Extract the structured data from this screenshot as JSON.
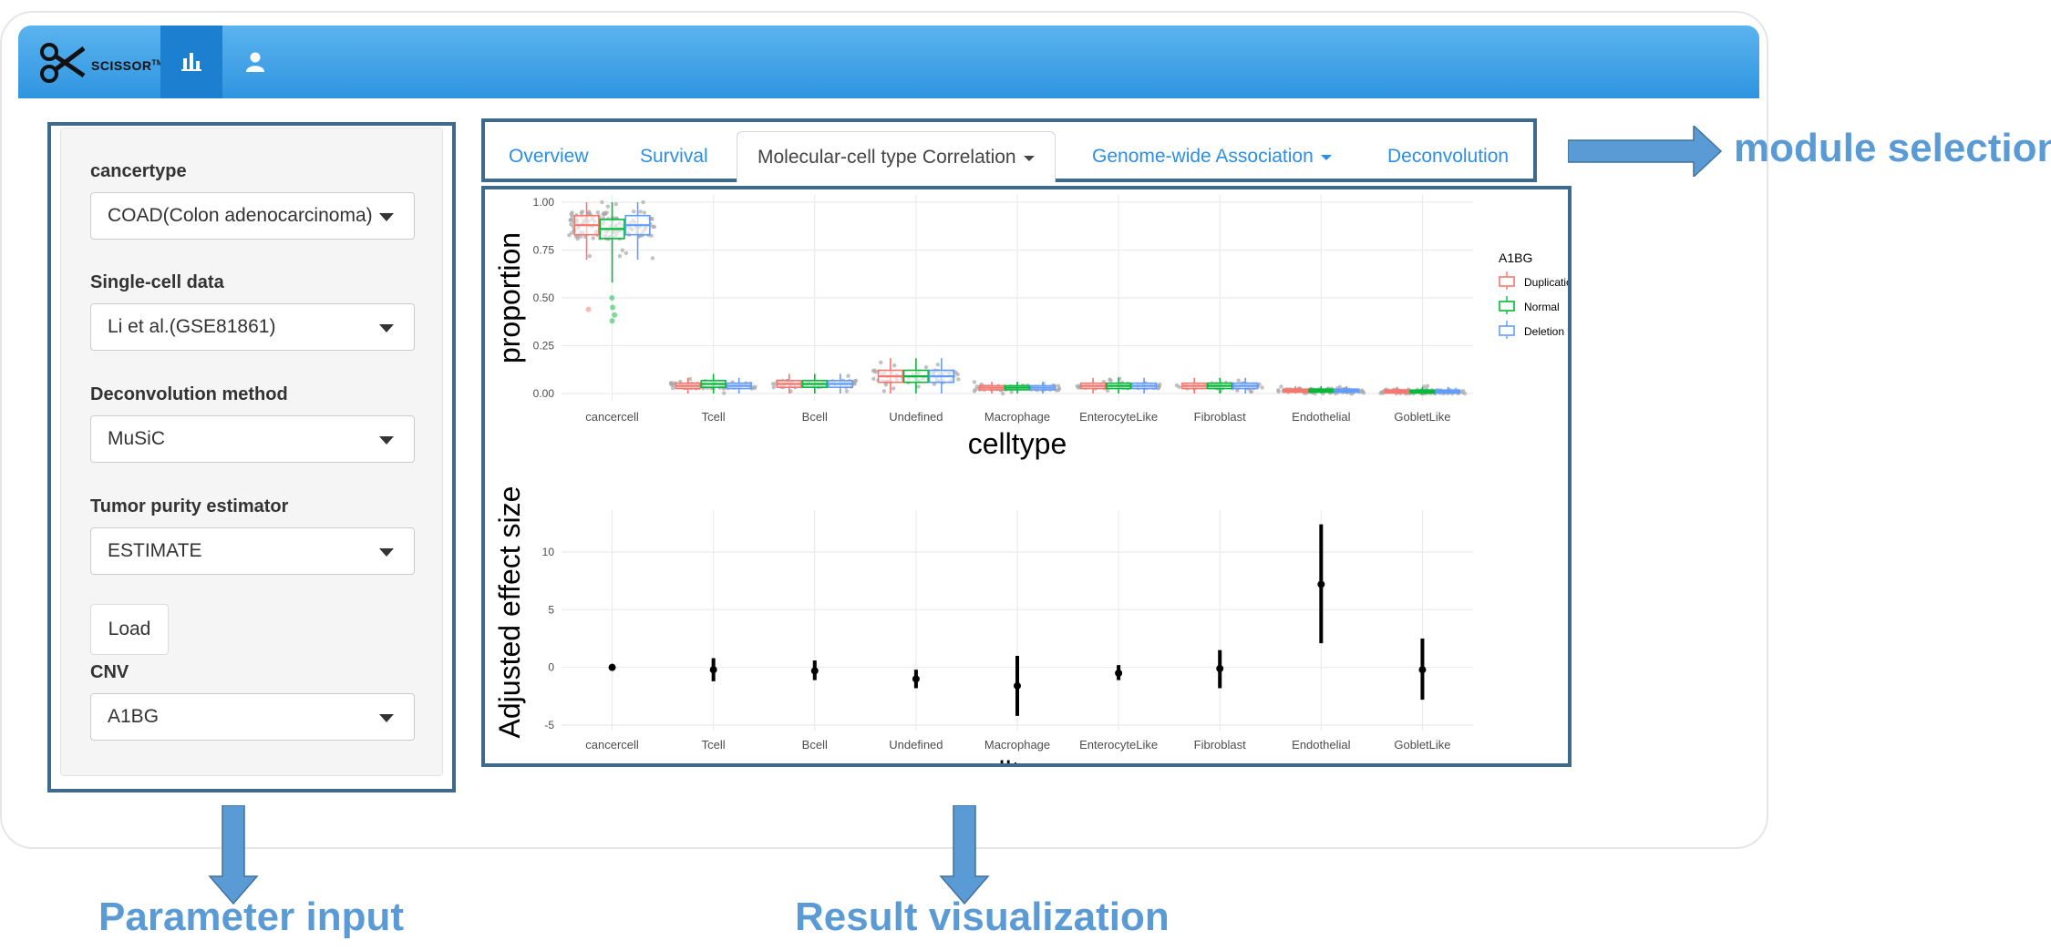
{
  "navbar": {
    "logo_text": "SCISSOR",
    "logo_tm": "TM",
    "icons": [
      "bar-chart-icon",
      "user-icon"
    ]
  },
  "sidebar": {
    "fields": [
      {
        "label": "cancertype",
        "value": "COAD(Colon adenocarcinoma)"
      },
      {
        "label": "Single-cell data",
        "value": "Li et al.(GSE81861)"
      },
      {
        "label": "Deconvolution method",
        "value": "MuSiC"
      },
      {
        "label": "Tumor purity estimator",
        "value": "ESTIMATE"
      }
    ],
    "load_label": "Load",
    "cnv": {
      "label": "CNV",
      "value": "A1BG"
    }
  },
  "tabs": [
    {
      "label": "Overview",
      "dropdown": false,
      "active": false
    },
    {
      "label": "Survival",
      "dropdown": false,
      "active": false
    },
    {
      "label": "Molecular-cell type Correlation",
      "dropdown": true,
      "active": true
    },
    {
      "label": "Genome-wide Association",
      "dropdown": true,
      "active": false
    },
    {
      "label": "Deconvolution",
      "dropdown": false,
      "active": false
    }
  ],
  "annotations": {
    "module_selection": "module selection",
    "parameter_input": "Parameter input",
    "result_visualization": "Result visualization"
  },
  "colors": {
    "navbar": "#2f95e0",
    "frame": "#3e6a8e",
    "annotation": "#5b9bd5",
    "duplication": "#f8766d",
    "normal": "#00ba38",
    "deletion": "#619cff"
  },
  "chart_data": [
    {
      "type": "box",
      "ylabel": "proportion",
      "xlabel": "celltype",
      "ylim": [
        0,
        1
      ],
      "yticks": [
        "0.00",
        "0.25",
        "0.50",
        "0.75",
        "1.00"
      ],
      "categories": [
        "cancercell",
        "Tcell",
        "Bcell",
        "Undefined",
        "Macrophage",
        "EnterocyteLike",
        "Fibroblast",
        "Endothelial",
        "GobletLike"
      ],
      "legend_title": "A1BG",
      "legend_position": "right",
      "series": [
        {
          "name": "Duplication",
          "medians": [
            0.88,
            0.04,
            0.05,
            0.09,
            0.03,
            0.04,
            0.04,
            0.015,
            0.01
          ]
        },
        {
          "name": "Normal",
          "medians": [
            0.86,
            0.05,
            0.05,
            0.09,
            0.03,
            0.04,
            0.04,
            0.015,
            0.01
          ]
        },
        {
          "name": "Deletion",
          "medians": [
            0.88,
            0.04,
            0.05,
            0.09,
            0.03,
            0.04,
            0.04,
            0.015,
            0.01
          ]
        }
      ]
    },
    {
      "type": "pointrange",
      "ylabel": "Adjusted effect size",
      "xlabel": "celltype",
      "ylim": [
        -5,
        13
      ],
      "yticks": [
        "-5",
        "0",
        "5",
        "10"
      ],
      "categories": [
        "cancercell",
        "Tcell",
        "Bcell",
        "Undefined",
        "Macrophage",
        "EnterocyteLike",
        "Fibroblast",
        "Endothelial",
        "GobletLike"
      ],
      "estimate": [
        0,
        -0.2,
        -0.3,
        -1.0,
        -1.6,
        -0.5,
        -0.1,
        7.2,
        -0.2
      ],
      "lower": [
        0,
        -1.2,
        -1.1,
        -1.8,
        -4.2,
        -1.1,
        -1.8,
        2.1,
        -2.8
      ],
      "upper": [
        0,
        0.8,
        0.6,
        -0.2,
        1.0,
        0.2,
        1.5,
        12.4,
        2.5
      ]
    }
  ]
}
